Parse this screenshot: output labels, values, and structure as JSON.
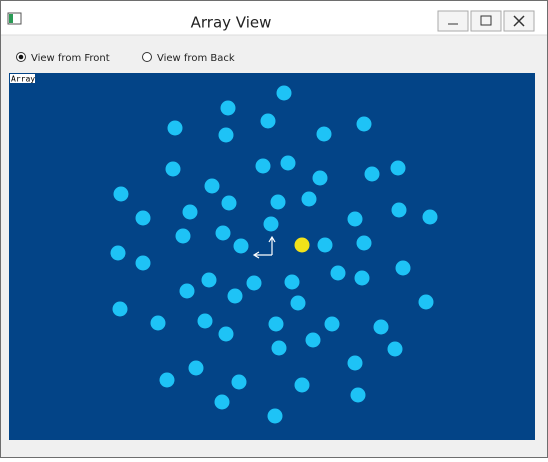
{
  "window": {
    "title": "Array View"
  },
  "options": [
    {
      "label": "View from Front",
      "selected": true
    },
    {
      "label": "View from Back",
      "selected": false
    }
  ],
  "canvas": {
    "label": "Array"
  }
}
